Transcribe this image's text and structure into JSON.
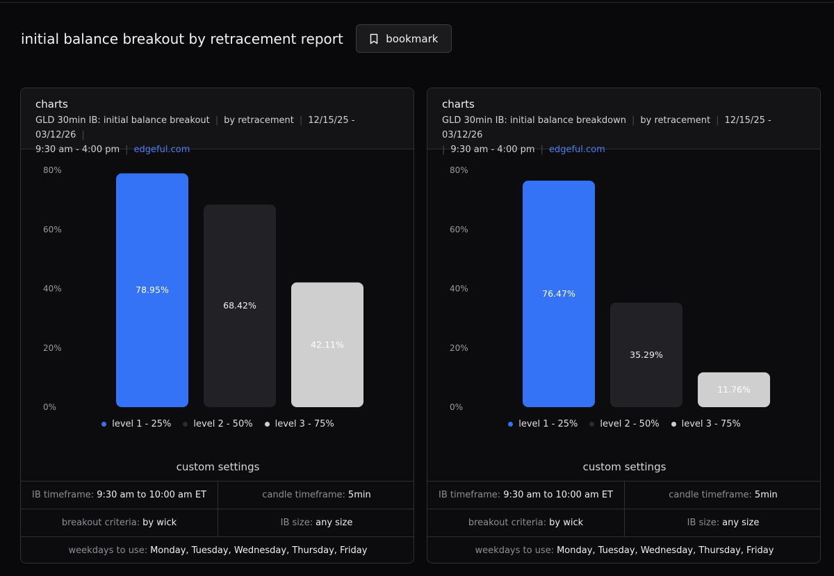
{
  "page": {
    "title": "initial balance breakout by retracement report",
    "bookmark_label": "bookmark"
  },
  "cards": [
    {
      "title": "charts",
      "meta": {
        "instrument": "GLD 30min IB: initial balance breakout",
        "mode": "by retracement",
        "date_range": "12/15/25 - 03/12/26",
        "session": "9:30 am - 4:00 pm",
        "site": "edgeful.com"
      },
      "legend": [
        {
          "label": "level 1 - 25%"
        },
        {
          "label": "level 2 - 50%"
        },
        {
          "label": "level 3 - 75%"
        }
      ],
      "settings": {
        "title": "custom settings",
        "ib_timeframe_label": "IB timeframe:",
        "ib_timeframe_value": "9:30 am to 10:00 am ET",
        "candle_timeframe_label": "candle timeframe:",
        "candle_timeframe_value": "5min",
        "breakout_criteria_label": "breakout criteria:",
        "breakout_criteria_value": "by wick",
        "ib_size_label": "IB size:",
        "ib_size_value": "any size",
        "weekdays_label": "weekdays to use:",
        "weekdays_value": "Monday, Tuesday, Wednesday, Thursday, Friday"
      }
    },
    {
      "title": "charts",
      "meta": {
        "instrument": "GLD 30min IB: initial balance breakdown",
        "mode": "by retracement",
        "date_range": "12/15/25 - 03/12/26",
        "session": "9:30 am - 4:00 pm",
        "site": "edgeful.com"
      },
      "legend": [
        {
          "label": "level 1 - 25%"
        },
        {
          "label": "level 2 - 50%"
        },
        {
          "label": "level 3 - 75%"
        }
      ],
      "settings": {
        "title": "custom settings",
        "ib_timeframe_label": "IB timeframe:",
        "ib_timeframe_value": "9:30 am to 10:00 am ET",
        "candle_timeframe_label": "candle timeframe:",
        "candle_timeframe_value": "5min",
        "breakout_criteria_label": "breakout criteria:",
        "breakout_criteria_value": "by wick",
        "ib_size_label": "IB size:",
        "ib_size_value": "any size",
        "weekdays_label": "weekdays to use:",
        "weekdays_value": "Monday, Tuesday, Wednesday, Thursday, Friday"
      }
    }
  ],
  "colors": {
    "level1": "#3472f6",
    "level2": "#222226",
    "level3": "#cfcfcf",
    "link": "#4f7ff0"
  },
  "chart_data": [
    {
      "type": "bar",
      "title": "GLD 30min IB: initial balance breakout",
      "categories": [
        "level 1 - 25%",
        "level 2 - 50%",
        "level 3 - 75%"
      ],
      "values": [
        78.95,
        68.42,
        42.11
      ],
      "labels": [
        "78.95%",
        "68.42%",
        "42.11%"
      ],
      "yticks": [
        "0%",
        "20%",
        "40%",
        "60%",
        "80%"
      ],
      "ylim": [
        0,
        80
      ],
      "grid": false,
      "legend": "bottom"
    },
    {
      "type": "bar",
      "title": "GLD 30min IB: initial balance breakdown",
      "categories": [
        "level 1 - 25%",
        "level 2 - 50%",
        "level 3 - 75%"
      ],
      "values": [
        76.47,
        35.29,
        11.76
      ],
      "labels": [
        "76.47%",
        "35.29%",
        "11.76%"
      ],
      "yticks": [
        "0%",
        "20%",
        "40%",
        "60%",
        "80%"
      ],
      "ylim": [
        0,
        80
      ],
      "grid": false,
      "legend": "bottom"
    }
  ]
}
